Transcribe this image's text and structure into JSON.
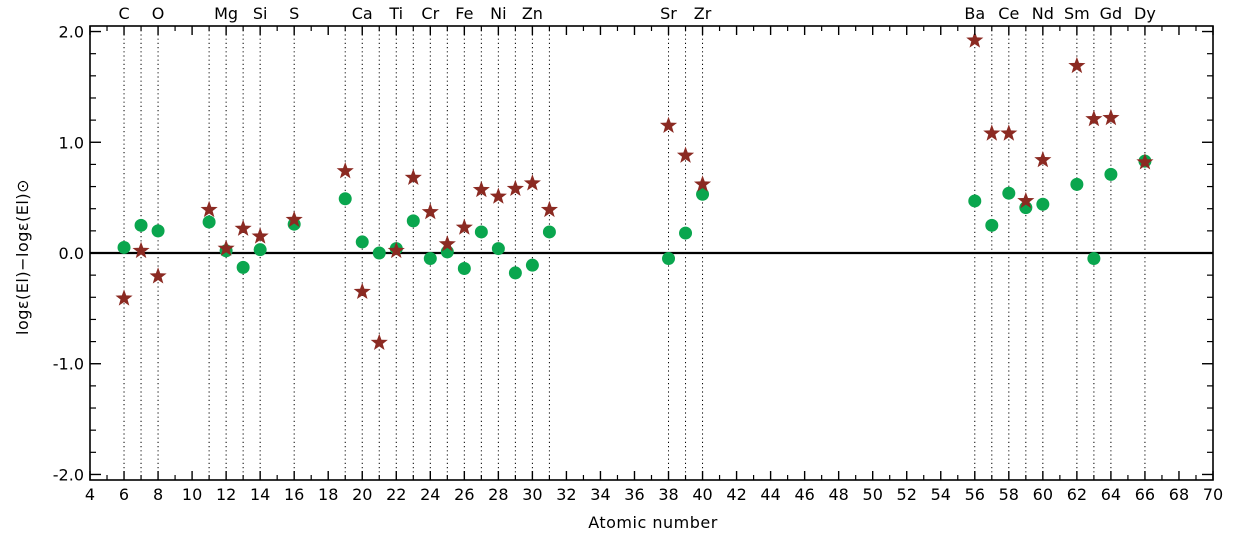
{
  "chart_data": {
    "type": "scatter",
    "xlabel": "Atomic number",
    "ylabel": "logε(El)−logε(El)⊙",
    "xlim": [
      4,
      70
    ],
    "ylim": [
      -2.05,
      2.05
    ],
    "x_ticks": [
      4,
      6,
      8,
      10,
      12,
      14,
      16,
      18,
      20,
      22,
      24,
      26,
      28,
      30,
      32,
      34,
      36,
      38,
      40,
      42,
      44,
      46,
      48,
      50,
      52,
      54,
      56,
      58,
      60,
      62,
      64,
      66,
      68,
      70
    ],
    "y_ticks": [
      {
        "value": 2.0,
        "label": "2.0"
      },
      {
        "value": 1.0,
        "label": "1.0"
      },
      {
        "value": 0.0,
        "label": "0.0"
      },
      {
        "value": -1.0,
        "label": "-1.0"
      },
      {
        "value": -2.0,
        "label": "-2.0"
      }
    ],
    "reference_line": 0.0,
    "element_lines": [
      6,
      7,
      8,
      11,
      12,
      13,
      14,
      16,
      19,
      20,
      21,
      22,
      23,
      24,
      25,
      26,
      27,
      28,
      29,
      30,
      31,
      38,
      39,
      40,
      56,
      57,
      58,
      59,
      60,
      62,
      63,
      64,
      66
    ],
    "element_labels": [
      {
        "text": "C",
        "x": 6
      },
      {
        "text": "O",
        "x": 8
      },
      {
        "text": "Mg",
        "x": 12
      },
      {
        "text": "Si",
        "x": 14
      },
      {
        "text": "S",
        "x": 16
      },
      {
        "text": "Ca",
        "x": 20
      },
      {
        "text": "Ti",
        "x": 22
      },
      {
        "text": "Cr",
        "x": 24
      },
      {
        "text": "Fe",
        "x": 26
      },
      {
        "text": "Ni",
        "x": 28
      },
      {
        "text": "Zn",
        "x": 30
      },
      {
        "text": "Sr",
        "x": 38
      },
      {
        "text": "Zr",
        "x": 40
      },
      {
        "text": "Ba",
        "x": 56
      },
      {
        "text": "Ce",
        "x": 58
      },
      {
        "text": "Nd",
        "x": 60
      },
      {
        "text": "Sm",
        "x": 62
      },
      {
        "text": "Gd",
        "x": 64
      },
      {
        "text": "Dy",
        "x": 66
      }
    ],
    "series": [
      {
        "marker": "star",
        "color": "#8b2a22",
        "points": [
          {
            "x": 6,
            "y": -0.41
          },
          {
            "x": 7,
            "y": 0.02
          },
          {
            "x": 8,
            "y": -0.21
          },
          {
            "x": 11,
            "y": 0.39
          },
          {
            "x": 12,
            "y": 0.04
          },
          {
            "x": 13,
            "y": 0.22
          },
          {
            "x": 14,
            "y": 0.15
          },
          {
            "x": 16,
            "y": 0.3
          },
          {
            "x": 19,
            "y": 0.74
          },
          {
            "x": 20,
            "y": -0.35
          },
          {
            "x": 21,
            "y": -0.81
          },
          {
            "x": 22,
            "y": 0.02
          },
          {
            "x": 23,
            "y": 0.68
          },
          {
            "x": 24,
            "y": 0.37
          },
          {
            "x": 25,
            "y": 0.08
          },
          {
            "x": 26,
            "y": 0.23
          },
          {
            "x": 27,
            "y": 0.57
          },
          {
            "x": 28,
            "y": 0.51
          },
          {
            "x": 29,
            "y": 0.58
          },
          {
            "x": 30,
            "y": 0.63
          },
          {
            "x": 31,
            "y": 0.39
          },
          {
            "x": 38,
            "y": 1.15
          },
          {
            "x": 39,
            "y": 0.88
          },
          {
            "x": 40,
            "y": 0.62
          },
          {
            "x": 56,
            "y": 1.92
          },
          {
            "x": 57,
            "y": 1.08
          },
          {
            "x": 58,
            "y": 1.08
          },
          {
            "x": 59,
            "y": 0.47
          },
          {
            "x": 60,
            "y": 0.84
          },
          {
            "x": 62,
            "y": 1.69
          },
          {
            "x": 63,
            "y": 1.21
          },
          {
            "x": 64,
            "y": 1.22
          },
          {
            "x": 66,
            "y": 0.82
          }
        ]
      },
      {
        "marker": "circle",
        "color": "#0aa64e",
        "points": [
          {
            "x": 6,
            "y": 0.05
          },
          {
            "x": 7,
            "y": 0.25
          },
          {
            "x": 8,
            "y": 0.2
          },
          {
            "x": 11,
            "y": 0.28
          },
          {
            "x": 12,
            "y": 0.02
          },
          {
            "x": 13,
            "y": -0.13
          },
          {
            "x": 14,
            "y": 0.03
          },
          {
            "x": 16,
            "y": 0.26
          },
          {
            "x": 19,
            "y": 0.49
          },
          {
            "x": 20,
            "y": 0.1
          },
          {
            "x": 21,
            "y": 0.0
          },
          {
            "x": 22,
            "y": 0.04
          },
          {
            "x": 23,
            "y": 0.29
          },
          {
            "x": 24,
            "y": -0.05
          },
          {
            "x": 25,
            "y": 0.01
          },
          {
            "x": 26,
            "y": -0.14
          },
          {
            "x": 27,
            "y": 0.19
          },
          {
            "x": 28,
            "y": 0.04
          },
          {
            "x": 29,
            "y": -0.18
          },
          {
            "x": 30,
            "y": -0.11
          },
          {
            "x": 31,
            "y": 0.19
          },
          {
            "x": 38,
            "y": -0.05
          },
          {
            "x": 39,
            "y": 0.18
          },
          {
            "x": 40,
            "y": 0.53
          },
          {
            "x": 56,
            "y": 0.47
          },
          {
            "x": 57,
            "y": 0.25
          },
          {
            "x": 58,
            "y": 0.54
          },
          {
            "x": 59,
            "y": 0.41
          },
          {
            "x": 60,
            "y": 0.44
          },
          {
            "x": 62,
            "y": 0.62
          },
          {
            "x": 63,
            "y": -0.05
          },
          {
            "x": 64,
            "y": 0.71
          },
          {
            "x": 66,
            "y": 0.83
          }
        ]
      }
    ]
  }
}
